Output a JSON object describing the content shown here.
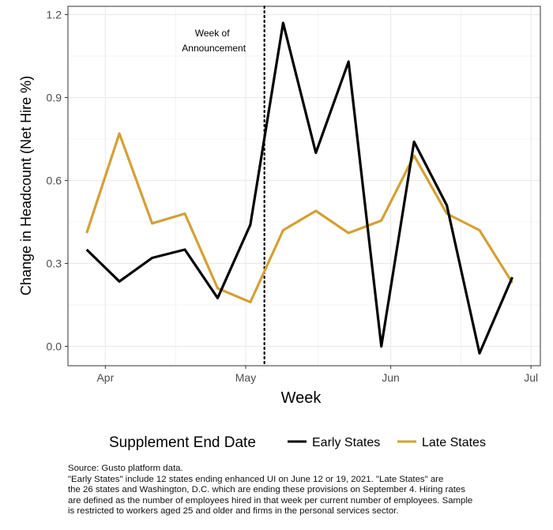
{
  "chart_data": {
    "type": "line",
    "xlabel": "Week",
    "ylabel": "Change in Headcount (Net Hire %)",
    "ylim": [
      -0.07,
      1.23
    ],
    "y_ticks": [
      0.0,
      0.3,
      0.6,
      0.9,
      1.2
    ],
    "y_tick_labels": [
      "0.0",
      "0.3",
      "0.6",
      "0.9",
      "1.2"
    ],
    "x_ticks": [
      {
        "date": "2021-04-01",
        "label": "Apr"
      },
      {
        "date": "2021-05-01",
        "label": "May"
      },
      {
        "date": "2021-06-01",
        "label": "Jun"
      },
      {
        "date": "2021-07-01",
        "label": "Jul"
      }
    ],
    "xlim": [
      "2021-03-24",
      "2021-07-03"
    ],
    "vline": {
      "date": "2021-05-05",
      "label_line1": "Week of",
      "label_line2": "Announcement",
      "style": "dotted"
    },
    "legend": {
      "title": "Supplement End Date",
      "position": "bottom"
    },
    "series": [
      {
        "name": "Early States",
        "color": "#000000",
        "x": [
          "2021-03-28",
          "2021-04-04",
          "2021-04-11",
          "2021-04-18",
          "2021-04-25",
          "2021-05-02",
          "2021-05-09",
          "2021-05-16",
          "2021-05-23",
          "2021-05-30",
          "2021-06-06",
          "2021-06-13",
          "2021-06-20",
          "2021-06-27"
        ],
        "values": [
          0.35,
          0.235,
          0.32,
          0.35,
          0.175,
          0.44,
          1.17,
          0.7,
          1.03,
          0.0,
          0.74,
          0.51,
          -0.025,
          0.25
        ]
      },
      {
        "name": "Late States",
        "color": "#D4A035",
        "x": [
          "2021-03-28",
          "2021-04-04",
          "2021-04-11",
          "2021-04-18",
          "2021-04-25",
          "2021-05-02",
          "2021-05-09",
          "2021-05-16",
          "2021-05-23",
          "2021-05-30",
          "2021-06-06",
          "2021-06-13",
          "2021-06-20",
          "2021-06-27"
        ],
        "values": [
          0.41,
          0.77,
          0.445,
          0.48,
          0.21,
          0.16,
          0.42,
          0.49,
          0.41,
          0.455,
          0.69,
          0.48,
          0.42,
          0.23
        ]
      }
    ]
  },
  "caption": {
    "line1": "Source: Gusto platform data.",
    "line2": "\"Early States\" include 12 states ending enhanced UI on June 12 or 19, 2021. \"Late States\" are",
    "line3": "the 26 states and Washington, D.C. which are ending these provisions on September 4. Hiring rates",
    "line4": "are defined as the number of employees hired in that week per current number of employees. Sample",
    "line5": "is restricted to workers aged 25 and older and firms in the personal services sector."
  },
  "colors": {
    "grid": "#EBEBEB",
    "axis": "#333333",
    "early": "#000000",
    "late": "#D4A035"
  }
}
